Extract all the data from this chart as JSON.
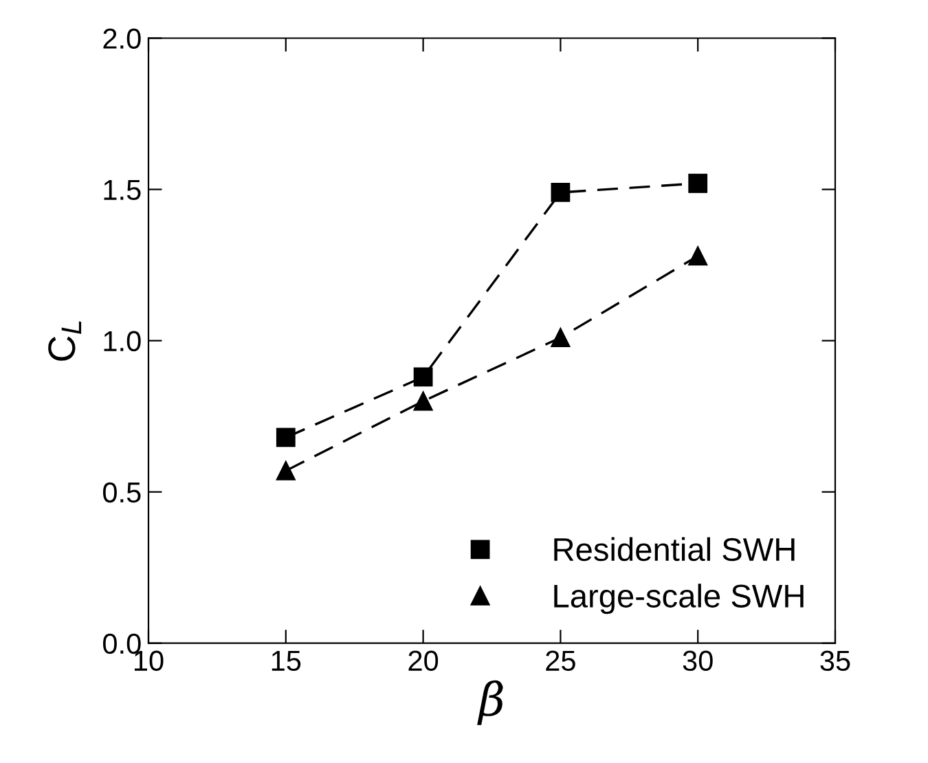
{
  "chart_data": {
    "type": "line",
    "xlabel": "β",
    "ylabel": "C$_{L}$",
    "x": [
      15,
      20,
      25,
      30
    ],
    "series": [
      {
        "name": "Residential SWH",
        "color": "#000000",
        "marker": "square",
        "values": [
          0.68,
          0.88,
          1.49,
          1.52
        ]
      },
      {
        "name": "Large-scale SWH",
        "color": "#000000",
        "marker": "triangle",
        "values": [
          0.57,
          0.8,
          1.01,
          1.28
        ]
      }
    ],
    "line_style": "dashed",
    "xlim": [
      10,
      35
    ],
    "xticks": [
      10,
      15,
      20,
      25,
      30,
      35
    ],
    "ylim": [
      0.0,
      2.0
    ],
    "yticks": [
      {
        "value": 0.0,
        "label": "0.0"
      },
      0.5,
      {
        "value": 1.0,
        "label": "1.0"
      },
      1.5,
      {
        "value": 2.0,
        "label": "2.0"
      }
    ],
    "grid": false,
    "legend": "bottom right"
  }
}
